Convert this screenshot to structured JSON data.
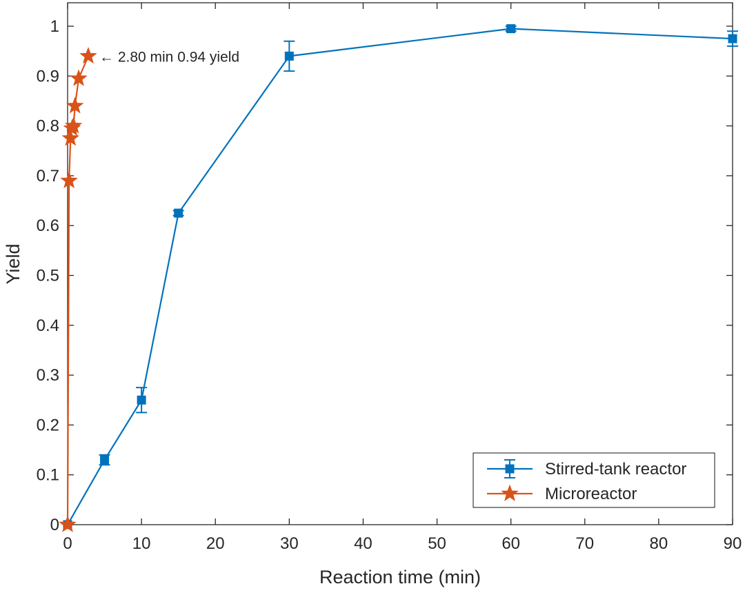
{
  "chart_data": {
    "type": "line",
    "title": "",
    "xlabel": "Reaction time (min)",
    "ylabel": "Yield",
    "xlim": [
      0,
      90
    ],
    "ylim": [
      0,
      1
    ],
    "xticks": [
      0,
      10,
      20,
      30,
      40,
      50,
      60,
      70,
      80,
      90
    ],
    "yticks": [
      0,
      0.1,
      0.2,
      0.3,
      0.4,
      0.5,
      0.6,
      0.7,
      0.8,
      0.9,
      1
    ],
    "xtick_labels": [
      "0",
      "10",
      "20",
      "30",
      "40",
      "50",
      "60",
      "70",
      "80",
      "90"
    ],
    "ytick_labels": [
      "0",
      "0.1",
      "0.2",
      "0.3",
      "0.4",
      "0.5",
      "0.6",
      "0.7",
      "0.8",
      "0.9",
      "1"
    ],
    "grid": false,
    "legend_position": "bottom-right",
    "series": [
      {
        "name": "Stirred-tank reactor",
        "color": "#0072BD",
        "marker": "square",
        "x": [
          0,
          5,
          10,
          15,
          30,
          60,
          90
        ],
        "y": [
          0,
          0.13,
          0.25,
          0.625,
          0.94,
          0.995,
          0.975
        ],
        "error": [
          0,
          0.01,
          0.025,
          0.005,
          0.03,
          0.005,
          0.015
        ]
      },
      {
        "name": "Microreactor",
        "color": "#D95319",
        "marker": "star",
        "x": [
          0,
          0.2,
          0.4,
          0.6,
          0.8,
          1.0,
          1.5,
          2.8
        ],
        "y": [
          0,
          0.69,
          0.775,
          0.795,
          0.8,
          0.84,
          0.895,
          0.94
        ]
      }
    ],
    "annotations": [
      {
        "text": "← 2.80 min 0.94 yield",
        "x": 2.8,
        "y": 0.94
      }
    ]
  }
}
